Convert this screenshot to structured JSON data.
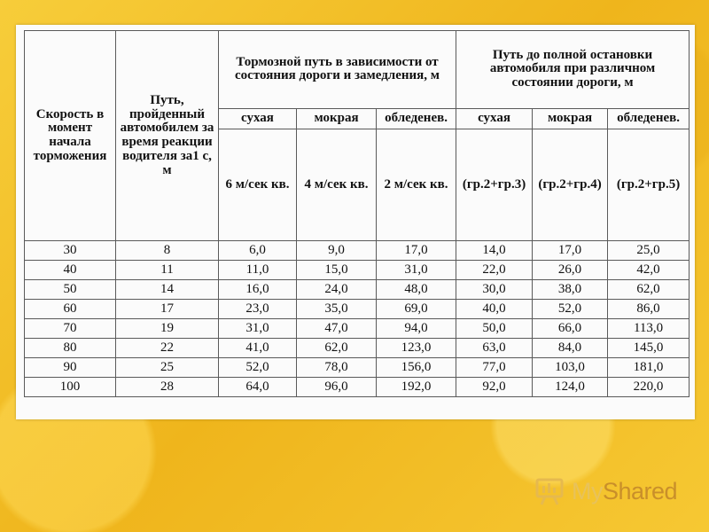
{
  "table": {
    "headers": {
      "speed": "Скорость в момент начала торможения",
      "reaction": "Путь, пройденный автомобилем за время реакции водителя за1 с, м",
      "braking": "Тормозной путь в зависимости от состояния дороги и замедления, м",
      "full_stop": "Путь до полной остановки автомобиля при различном состоянии дороги, м"
    },
    "subheaders": [
      "сухая",
      "мокрая",
      "обледенев.",
      "сухая",
      "мокрая",
      "обледенев."
    ],
    "units": [
      "6 м/сек кв.",
      "4 м/сек кв.",
      "2 м/сек кв.",
      "(гр.2+гр.3)",
      "(гр.2+гр.4)",
      "(гр.2+гр.5)"
    ],
    "rows": [
      [
        "30",
        "8",
        "6,0",
        "9,0",
        "17,0",
        "14,0",
        "17,0",
        "25,0"
      ],
      [
        "40",
        "11",
        "11,0",
        "15,0",
        "31,0",
        "22,0",
        "26,0",
        "42,0"
      ],
      [
        "50",
        "14",
        "16,0",
        "24,0",
        "48,0",
        "30,0",
        "38,0",
        "62,0"
      ],
      [
        "60",
        "17",
        "23,0",
        "35,0",
        "69,0",
        "40,0",
        "52,0",
        "86,0"
      ],
      [
        "70",
        "19",
        "31,0",
        "47,0",
        "94,0",
        "50,0",
        "66,0",
        "113,0"
      ],
      [
        "80",
        "22",
        "41,0",
        "62,0",
        "123,0",
        "63,0",
        "84,0",
        "145,0"
      ],
      [
        "90",
        "25",
        "52,0",
        "78,0",
        "156,0",
        "77,0",
        "103,0",
        "181,0"
      ],
      [
        "100",
        "28",
        "64,0",
        "96,0",
        "192,0",
        "92,0",
        "124,0",
        "220,0"
      ]
    ]
  },
  "watermark": {
    "brand_part1": "My",
    "brand_part2": "Shared",
    "icon": "presentation-board-icon"
  }
}
